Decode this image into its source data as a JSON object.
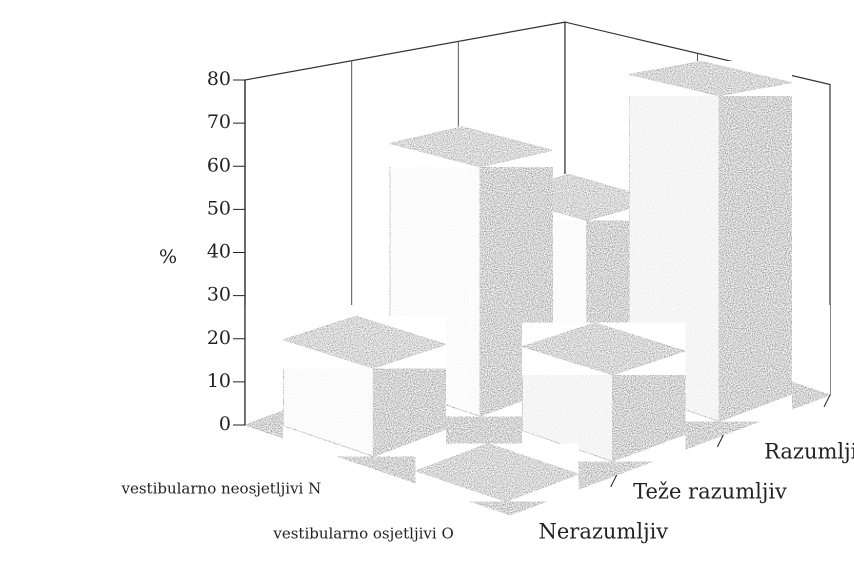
{
  "chart_data": {
    "type": "bar3d",
    "y_label": "%",
    "categories": [
      "Nerazumljiv",
      "Teže razumljiv",
      "Razumljiv"
    ],
    "series": [
      {
        "name": "vestibularno neosjetljivi N",
        "color": "#a8a8a8",
        "values": [
          20,
          60,
          40
        ]
      },
      {
        "name": "vestibularno osjetljivi O",
        "color": "#9c9c9c",
        "values": [
          0,
          20,
          80
        ]
      }
    ],
    "ylim": [
      0,
      80
    ],
    "yticks": [
      0,
      10,
      20,
      30,
      40,
      50,
      60,
      70,
      80
    ],
    "grid": false
  }
}
